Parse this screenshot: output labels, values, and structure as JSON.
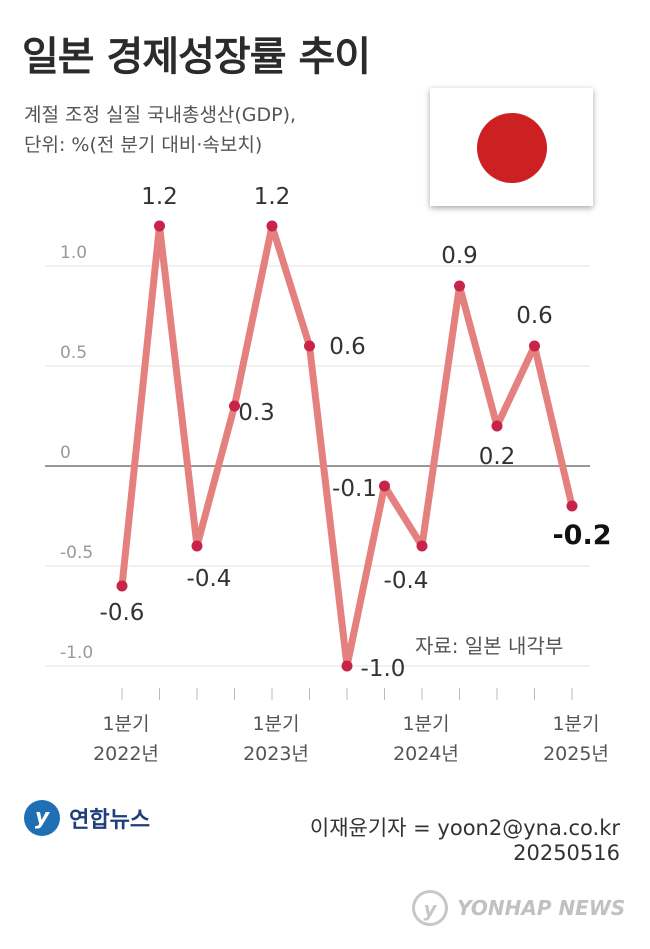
{
  "header": {
    "title": "일본 경제성장률 추이",
    "subtitle_line1": "계절 조정 실질 국내총생산(GDP),",
    "subtitle_line2": "단위: %(전 분기 대비·속보치)"
  },
  "flag": {
    "name": "japan-flag",
    "field_color": "#ffffff",
    "sun_color": "#cc2022"
  },
  "chart_data": {
    "type": "line",
    "title": "일본 경제성장률 추이",
    "ylabel": "",
    "xlabel": "",
    "ylim": [
      -1.0,
      1.2
    ],
    "yticks": [
      1.0,
      0.5,
      0,
      -0.5,
      -1.0
    ],
    "ytick_labels": [
      "1.0",
      "0.5",
      "0",
      "-0.5",
      "-1.0"
    ],
    "grid": true,
    "line_color": "#e4807e",
    "point_color": "#c8244a",
    "x_group_labels": [
      {
        "index": 0,
        "line1": "1분기",
        "line2": "2022년"
      },
      {
        "index": 4,
        "line1": "1분기",
        "line2": "2023년"
      },
      {
        "index": 8,
        "line1": "1분기",
        "line2": "2024년"
      },
      {
        "index": 12,
        "line1": "1분기",
        "line2": "2025년"
      }
    ],
    "values": [
      -0.6,
      1.2,
      -0.4,
      0.3,
      1.2,
      0.6,
      -1.0,
      -0.1,
      -0.4,
      0.9,
      0.2,
      0.6,
      -0.2
    ],
    "value_labels": [
      "-0.6",
      "1.2",
      "-0.4",
      "0.3",
      "1.2",
      "0.6",
      "-1.0",
      "-0.1",
      "-0.4",
      "0.9",
      "0.2",
      "0.6",
      "-0.2"
    ]
  },
  "source": "자료: 일본 내각부",
  "footer": {
    "agency": "연합뉴스",
    "agency_mark": "y",
    "reporter": "이재윤기자 = yoon2@yna.co.kr",
    "date": "20250516",
    "watermark": "YONHAP NEWS",
    "watermark_mark": "y"
  }
}
